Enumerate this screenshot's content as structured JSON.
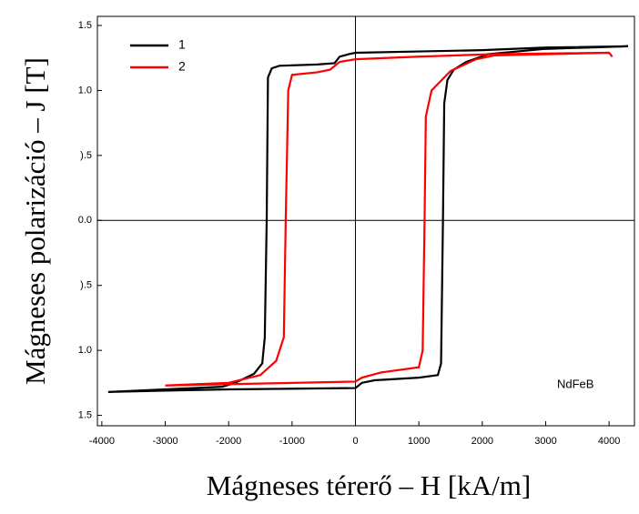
{
  "chart_data": {
    "type": "line",
    "x_label": "Mágneses térerő – H [kA/m]",
    "y_label": "Mágneses polarizáció – J [T]",
    "annotation": "NdFeB",
    "xlim": [
      -4070,
      4400
    ],
    "ylim": [
      -1.58,
      1.57
    ],
    "xticks": [
      -4000,
      -3000,
      -2000,
      -1000,
      0,
      1000,
      2000,
      3000,
      4000
    ],
    "yticks": [
      1.5,
      {
        "value": 1,
        "label": "1.0"
      },
      {
        "value": 0.5,
        "label": ").5"
      },
      {
        "value": 0,
        "label": "0.0"
      },
      {
        "value": -0.5,
        "label": ").5"
      },
      {
        "value": -1,
        "label": "1.0"
      },
      {
        "value": -1.5,
        "label": "1.5"
      }
    ],
    "legend": "upper-left",
    "series": [
      {
        "name": "1",
        "color": "#000000",
        "x": [
          4300,
          3000,
          2000,
          1000,
          0,
          -100,
          -250,
          -330,
          -600,
          -1200,
          -1320,
          -1380,
          -1400,
          -1430,
          -1470,
          -1600,
          -1900,
          -2100,
          -3000,
          -3900,
          -3000,
          -2000,
          0,
          100,
          300,
          1000,
          1300,
          1350,
          1380,
          1400,
          1450,
          1550,
          1750,
          2100,
          3000,
          4300
        ],
        "values": [
          1.34,
          1.33,
          1.31,
          1.3,
          1.29,
          1.28,
          1.26,
          1.21,
          1.2,
          1.19,
          1.17,
          1.1,
          0,
          -0.9,
          -1.1,
          -1.18,
          -1.25,
          -1.28,
          -1.3,
          -1.32,
          -1.31,
          -1.3,
          -1.29,
          -1.25,
          -1.23,
          -1.21,
          -1.19,
          -1.1,
          0,
          0.9,
          1.08,
          1.16,
          1.22,
          1.28,
          1.32,
          1.34
        ]
      },
      {
        "name": "2",
        "color": "#ff0000",
        "x": [
          4050,
          4000,
          2200,
          1000,
          0,
          -250,
          -400,
          -600,
          -1000,
          -1060,
          -1100,
          -1130,
          -1250,
          -1500,
          -2000,
          -3000,
          -2000,
          0,
          100,
          400,
          1000,
          1060,
          1090,
          1110,
          1200,
          1500,
          1900,
          2200,
          4000
        ],
        "values": [
          1.26,
          1.29,
          1.28,
          1.26,
          1.24,
          1.22,
          1.16,
          1.14,
          1.12,
          1.0,
          0,
          -0.9,
          -1.08,
          -1.19,
          -1.25,
          -1.27,
          -1.26,
          -1.24,
          -1.21,
          -1.17,
          -1.13,
          -1.0,
          0,
          0.8,
          1.0,
          1.15,
          1.24,
          1.27,
          1.29
        ]
      }
    ]
  }
}
